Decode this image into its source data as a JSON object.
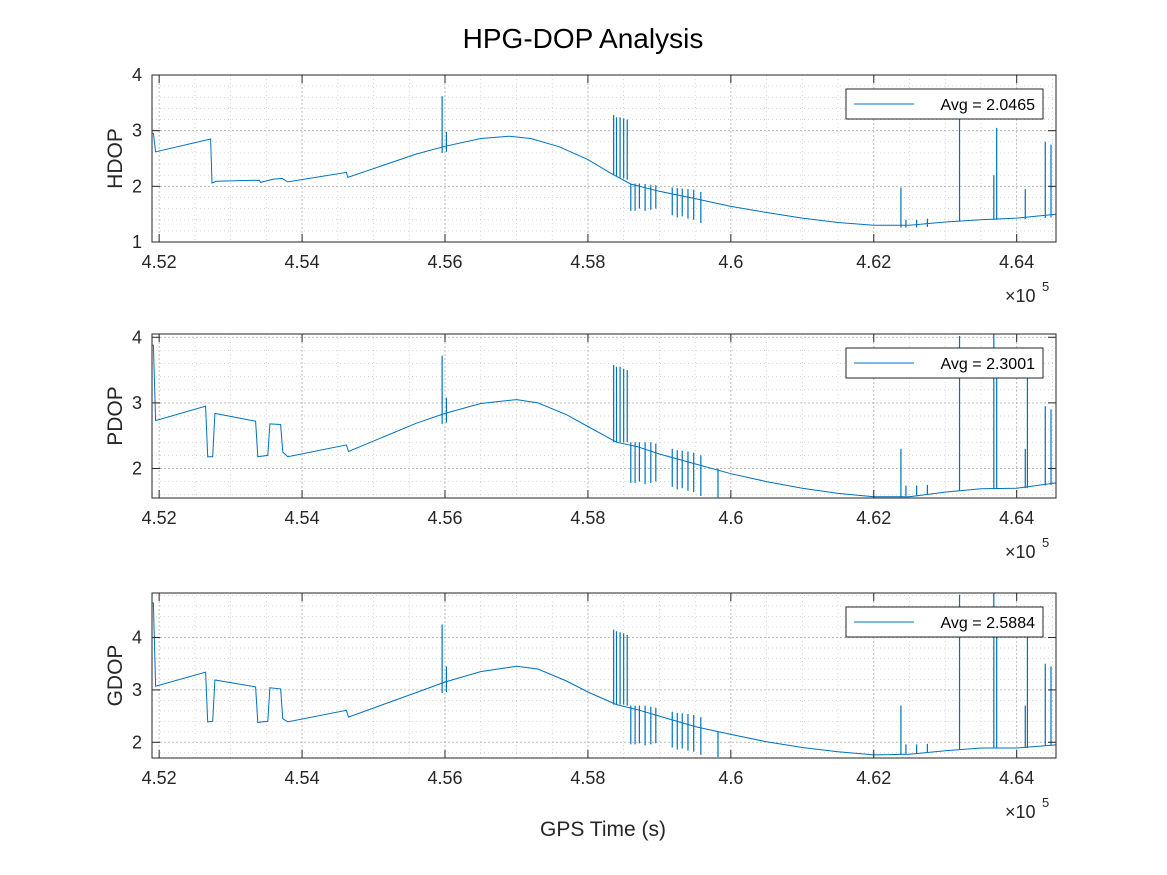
{
  "figure": {
    "title": "HPG-DOP Analysis",
    "xlabel": "GPS Time (s)",
    "x_multiplier_base": "×10",
    "x_multiplier_exp": "5"
  },
  "colors": {
    "line": "#0072BD",
    "axis": "#262626",
    "grid": "#b0b0b0"
  },
  "chart_data": [
    {
      "type": "line",
      "ylabel": "HDOP",
      "legend": {
        "entry": "Avg = 2.0465",
        "placement": "top-right"
      },
      "xlim": [
        4.519,
        4.6455
      ],
      "ylim": [
        1,
        4
      ],
      "xticks": [
        4.52,
        4.54,
        4.56,
        4.58,
        4.6,
        4.62,
        4.64
      ],
      "xtick_labels": [
        "4.52",
        "4.54",
        "4.56",
        "4.58",
        "4.6",
        "4.62",
        "4.64"
      ],
      "yticks": [
        1,
        2,
        3,
        4
      ],
      "ytick_labels": [
        "1",
        "2",
        "3",
        "4"
      ],
      "grid": true,
      "x": [
        4.519,
        4.5192,
        4.5195,
        4.5272,
        4.5274,
        4.528,
        4.534,
        4.5342,
        4.536,
        4.5372,
        4.538,
        4.5462,
        4.5464,
        4.556,
        4.56,
        4.565,
        4.569,
        4.572,
        4.576,
        4.58,
        4.583,
        4.586,
        4.59,
        4.595,
        4.6,
        4.605,
        4.61,
        4.615,
        4.62,
        4.625,
        4.63,
        4.635,
        4.64,
        4.6455
      ],
      "y": [
        2.95,
        2.95,
        2.62,
        2.85,
        2.06,
        2.09,
        2.11,
        2.07,
        2.13,
        2.14,
        2.08,
        2.25,
        2.16,
        2.58,
        2.72,
        2.86,
        2.9,
        2.86,
        2.71,
        2.48,
        2.25,
        2.04,
        1.91,
        1.78,
        1.64,
        1.53,
        1.43,
        1.35,
        1.3,
        1.3,
        1.36,
        1.4,
        1.43,
        1.5
      ],
      "spikes": [
        {
          "x": 4.5596,
          "lo": 2.6,
          "hi": 3.62
        },
        {
          "x": 4.5602,
          "lo": 2.62,
          "hi": 2.98
        },
        {
          "x": 4.5836,
          "lo": 2.2,
          "hi": 3.28
        },
        {
          "x": 4.584,
          "lo": 2.18,
          "hi": 3.24
        },
        {
          "x": 4.5845,
          "lo": 2.16,
          "hi": 3.24
        },
        {
          "x": 4.585,
          "lo": 2.14,
          "hi": 3.22
        },
        {
          "x": 4.5855,
          "lo": 2.12,
          "hi": 3.2
        },
        {
          "x": 4.586,
          "lo": 1.56,
          "hi": 2.05
        },
        {
          "x": 4.5866,
          "lo": 1.56,
          "hi": 2.05
        },
        {
          "x": 4.5872,
          "lo": 1.6,
          "hi": 2.05
        },
        {
          "x": 4.588,
          "lo": 1.56,
          "hi": 2.04
        },
        {
          "x": 4.5888,
          "lo": 1.58,
          "hi": 2.03
        },
        {
          "x": 4.5895,
          "lo": 1.6,
          "hi": 2.02
        },
        {
          "x": 4.5918,
          "lo": 1.48,
          "hi": 1.98
        },
        {
          "x": 4.5925,
          "lo": 1.44,
          "hi": 1.97
        },
        {
          "x": 4.5932,
          "lo": 1.46,
          "hi": 1.96
        },
        {
          "x": 4.594,
          "lo": 1.42,
          "hi": 1.95
        },
        {
          "x": 4.5948,
          "lo": 1.4,
          "hi": 1.94
        },
        {
          "x": 4.5958,
          "lo": 1.34,
          "hi": 1.9
        },
        {
          "x": 4.6238,
          "lo": 1.26,
          "hi": 1.98
        },
        {
          "x": 4.6245,
          "lo": 1.26,
          "hi": 1.4
        },
        {
          "x": 4.626,
          "lo": 1.26,
          "hi": 1.4
        },
        {
          "x": 4.6275,
          "lo": 1.27,
          "hi": 1.42
        },
        {
          "x": 4.632,
          "lo": 1.38,
          "hi": 3.3
        },
        {
          "x": 4.6368,
          "lo": 1.4,
          "hi": 2.2
        },
        {
          "x": 4.6372,
          "lo": 1.4,
          "hi": 3.05
        },
        {
          "x": 4.6412,
          "lo": 1.41,
          "hi": 1.95
        },
        {
          "x": 4.644,
          "lo": 1.43,
          "hi": 2.8
        },
        {
          "x": 4.6448,
          "lo": 1.44,
          "hi": 2.75
        }
      ]
    },
    {
      "type": "line",
      "ylabel": "PDOP",
      "legend": {
        "entry": "Avg = 2.3001",
        "placement": "top-right"
      },
      "xlim": [
        4.519,
        4.6455
      ],
      "ylim": [
        1.55,
        4.05
      ],
      "xticks": [
        4.52,
        4.54,
        4.56,
        4.58,
        4.6,
        4.62,
        4.64
      ],
      "xtick_labels": [
        "4.52",
        "4.54",
        "4.56",
        "4.58",
        "4.6",
        "4.62",
        "4.64"
      ],
      "yticks": [
        2,
        3,
        4
      ],
      "ytick_labels": [
        "2",
        "3",
        "4"
      ],
      "grid": true,
      "x": [
        4.519,
        4.5192,
        4.5195,
        4.5265,
        4.5268,
        4.5275,
        4.5278,
        4.5335,
        4.5338,
        4.5352,
        4.5355,
        4.537,
        4.5373,
        4.538,
        4.5462,
        4.5465,
        4.556,
        4.56,
        4.565,
        4.57,
        4.573,
        4.577,
        4.58,
        4.584,
        4.587,
        4.59,
        4.595,
        4.6,
        4.605,
        4.61,
        4.615,
        4.62,
        4.625,
        4.63,
        4.635,
        4.64,
        4.6455
      ],
      "y": [
        3.88,
        3.88,
        2.73,
        2.95,
        2.18,
        2.18,
        2.84,
        2.72,
        2.18,
        2.2,
        2.68,
        2.67,
        2.25,
        2.18,
        2.36,
        2.26,
        2.69,
        2.84,
        2.99,
        3.05,
        3.0,
        2.82,
        2.64,
        2.4,
        2.33,
        2.22,
        2.07,
        1.92,
        1.8,
        1.7,
        1.62,
        1.57,
        1.57,
        1.64,
        1.69,
        1.7,
        1.78
      ],
      "spikes": [
        {
          "x": 4.5596,
          "lo": 2.68,
          "hi": 3.72
        },
        {
          "x": 4.5602,
          "lo": 2.7,
          "hi": 3.08
        },
        {
          "x": 4.5836,
          "lo": 2.4,
          "hi": 3.58
        },
        {
          "x": 4.584,
          "lo": 2.4,
          "hi": 3.55
        },
        {
          "x": 4.5845,
          "lo": 2.4,
          "hi": 3.55
        },
        {
          "x": 4.585,
          "lo": 2.4,
          "hi": 3.52
        },
        {
          "x": 4.5855,
          "lo": 2.4,
          "hi": 3.5
        },
        {
          "x": 4.586,
          "lo": 1.78,
          "hi": 2.4
        },
        {
          "x": 4.5866,
          "lo": 1.78,
          "hi": 2.4
        },
        {
          "x": 4.5872,
          "lo": 1.8,
          "hi": 2.4
        },
        {
          "x": 4.588,
          "lo": 1.76,
          "hi": 2.4
        },
        {
          "x": 4.5888,
          "lo": 1.78,
          "hi": 2.4
        },
        {
          "x": 4.5895,
          "lo": 1.8,
          "hi": 2.38
        },
        {
          "x": 4.5918,
          "lo": 1.72,
          "hi": 2.3
        },
        {
          "x": 4.5925,
          "lo": 1.68,
          "hi": 2.28
        },
        {
          "x": 4.5932,
          "lo": 1.7,
          "hi": 2.27
        },
        {
          "x": 4.594,
          "lo": 1.66,
          "hi": 2.26
        },
        {
          "x": 4.5948,
          "lo": 1.64,
          "hi": 2.24
        },
        {
          "x": 4.5958,
          "lo": 1.58,
          "hi": 2.2
        },
        {
          "x": 4.5982,
          "lo": 1.56,
          "hi": 2.0
        },
        {
          "x": 4.6238,
          "lo": 1.57,
          "hi": 2.3
        },
        {
          "x": 4.6245,
          "lo": 1.58,
          "hi": 1.74
        },
        {
          "x": 4.626,
          "lo": 1.58,
          "hi": 1.74
        },
        {
          "x": 4.6275,
          "lo": 1.6,
          "hi": 1.75
        },
        {
          "x": 4.632,
          "lo": 1.66,
          "hi": 4.02
        },
        {
          "x": 4.6368,
          "lo": 1.69,
          "hi": 4.05
        },
        {
          "x": 4.6372,
          "lo": 1.69,
          "hi": 3.8
        },
        {
          "x": 4.6412,
          "lo": 1.7,
          "hi": 2.3
        },
        {
          "x": 4.6415,
          "lo": 1.7,
          "hi": 3.4
        },
        {
          "x": 4.644,
          "lo": 1.74,
          "hi": 2.95
        },
        {
          "x": 4.6448,
          "lo": 1.75,
          "hi": 2.9
        }
      ]
    },
    {
      "type": "line",
      "ylabel": "GDOP",
      "legend": {
        "entry": "Avg = 2.5884",
        "placement": "top-right"
      },
      "xlim": [
        4.519,
        4.6455
      ],
      "ylim": [
        1.7,
        4.85
      ],
      "xticks": [
        4.52,
        4.54,
        4.56,
        4.58,
        4.6,
        4.62,
        4.64
      ],
      "xtick_labels": [
        "4.52",
        "4.54",
        "4.56",
        "4.58",
        "4.6",
        "4.62",
        "4.64"
      ],
      "yticks": [
        2,
        3,
        4
      ],
      "ytick_labels": [
        "2",
        "3",
        "4"
      ],
      "grid": true,
      "x": [
        4.519,
        4.5192,
        4.5195,
        4.5265,
        4.5268,
        4.5275,
        4.5278,
        4.5335,
        4.5338,
        4.5352,
        4.5355,
        4.537,
        4.5373,
        4.538,
        4.5462,
        4.5465,
        4.556,
        4.56,
        4.565,
        4.57,
        4.573,
        4.577,
        4.58,
        4.584,
        4.587,
        4.59,
        4.595,
        4.6,
        4.605,
        4.61,
        4.615,
        4.62,
        4.625,
        4.63,
        4.635,
        4.64,
        4.6455
      ],
      "y": [
        4.66,
        4.66,
        3.07,
        3.34,
        2.39,
        2.4,
        3.19,
        3.06,
        2.38,
        2.4,
        3.04,
        3.02,
        2.45,
        2.39,
        2.61,
        2.48,
        2.95,
        3.15,
        3.35,
        3.45,
        3.4,
        3.17,
        2.96,
        2.72,
        2.62,
        2.5,
        2.3,
        2.15,
        2.01,
        1.9,
        1.82,
        1.76,
        1.77,
        1.84,
        1.89,
        1.89,
        1.95
      ],
      "spikes": [
        {
          "x": 4.5596,
          "lo": 2.94,
          "hi": 4.25
        },
        {
          "x": 4.5602,
          "lo": 2.96,
          "hi": 3.45
        },
        {
          "x": 4.5836,
          "lo": 2.72,
          "hi": 4.15
        },
        {
          "x": 4.584,
          "lo": 2.72,
          "hi": 4.12
        },
        {
          "x": 4.5845,
          "lo": 2.72,
          "hi": 4.1
        },
        {
          "x": 4.585,
          "lo": 2.72,
          "hi": 4.08
        },
        {
          "x": 4.5855,
          "lo": 2.7,
          "hi": 4.05
        },
        {
          "x": 4.586,
          "lo": 1.96,
          "hi": 2.7
        },
        {
          "x": 4.5866,
          "lo": 1.96,
          "hi": 2.7
        },
        {
          "x": 4.5872,
          "lo": 1.98,
          "hi": 2.7
        },
        {
          "x": 4.588,
          "lo": 1.94,
          "hi": 2.7
        },
        {
          "x": 4.5888,
          "lo": 1.96,
          "hi": 2.68
        },
        {
          "x": 4.5895,
          "lo": 1.98,
          "hi": 2.66
        },
        {
          "x": 4.5918,
          "lo": 1.9,
          "hi": 2.58
        },
        {
          "x": 4.5925,
          "lo": 1.86,
          "hi": 2.56
        },
        {
          "x": 4.5932,
          "lo": 1.88,
          "hi": 2.55
        },
        {
          "x": 4.594,
          "lo": 1.84,
          "hi": 2.54
        },
        {
          "x": 4.5948,
          "lo": 1.82,
          "hi": 2.52
        },
        {
          "x": 4.5958,
          "lo": 1.76,
          "hi": 2.48
        },
        {
          "x": 4.5982,
          "lo": 1.72,
          "hi": 2.2
        },
        {
          "x": 4.6238,
          "lo": 1.77,
          "hi": 2.7
        },
        {
          "x": 4.6245,
          "lo": 1.78,
          "hi": 1.96
        },
        {
          "x": 4.626,
          "lo": 1.78,
          "hi": 1.96
        },
        {
          "x": 4.6275,
          "lo": 1.8,
          "hi": 1.97
        },
        {
          "x": 4.632,
          "lo": 1.86,
          "hi": 4.82
        },
        {
          "x": 4.6368,
          "lo": 1.89,
          "hi": 4.85
        },
        {
          "x": 4.6372,
          "lo": 1.89,
          "hi": 4.5
        },
        {
          "x": 4.6412,
          "lo": 1.89,
          "hi": 2.7
        },
        {
          "x": 4.6415,
          "lo": 1.89,
          "hi": 4.1
        },
        {
          "x": 4.644,
          "lo": 1.93,
          "hi": 3.5
        },
        {
          "x": 4.6448,
          "lo": 1.94,
          "hi": 3.45
        }
      ]
    }
  ]
}
